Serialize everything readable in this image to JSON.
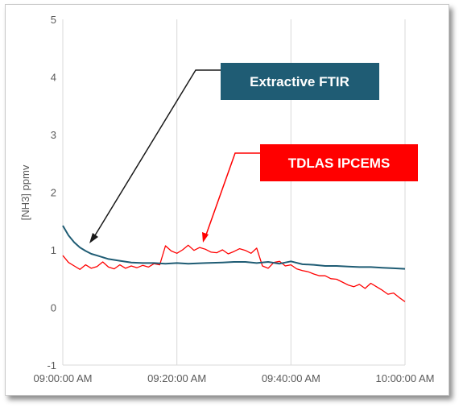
{
  "chart_data": {
    "type": "line",
    "title": "",
    "xlabel": "",
    "ylabel": "[NH3] ppmv",
    "ylim": [
      -1,
      5
    ],
    "yticks": [
      "-1",
      "0",
      "1",
      "2",
      "3",
      "4",
      "5"
    ],
    "xticks": [
      "09:00:00 AM",
      "09:20:00 AM",
      "09:40:00 AM",
      "10:00:00 AM"
    ],
    "x_minutes": [
      0,
      60
    ],
    "grid": "vertical",
    "series": [
      {
        "name": "Extractive FTIR",
        "color": "#1f5c74",
        "x": [
          0,
          1,
          2,
          3,
          4,
          5,
          6,
          8,
          10,
          12,
          14,
          16,
          18,
          20,
          22,
          25,
          28,
          30,
          32,
          34,
          36,
          38,
          40,
          42,
          44,
          46,
          48,
          50,
          52,
          54,
          56,
          58,
          60
        ],
        "values": [
          1.42,
          1.25,
          1.13,
          1.04,
          0.98,
          0.93,
          0.9,
          0.84,
          0.81,
          0.78,
          0.77,
          0.77,
          0.76,
          0.77,
          0.76,
          0.77,
          0.78,
          0.79,
          0.79,
          0.77,
          0.79,
          0.76,
          0.8,
          0.75,
          0.74,
          0.72,
          0.72,
          0.71,
          0.7,
          0.7,
          0.69,
          0.68,
          0.67
        ]
      },
      {
        "name": "TDLAS IPCEMS",
        "color": "#ff0000",
        "x": [
          0,
          1,
          2,
          3,
          4,
          5,
          6,
          7,
          8,
          9,
          10,
          11,
          12,
          13,
          14,
          15,
          16,
          17,
          18,
          19,
          20,
          21,
          22,
          23,
          24,
          25,
          26,
          27,
          28,
          29,
          30,
          31,
          32,
          33,
          34,
          35,
          36,
          37,
          38,
          39,
          40,
          41,
          42,
          43,
          44,
          45,
          46,
          47,
          48,
          49,
          50,
          51,
          52,
          53,
          54,
          55,
          56,
          57,
          58,
          59,
          60
        ],
        "values": [
          0.9,
          0.78,
          0.72,
          0.66,
          0.74,
          0.68,
          0.71,
          0.79,
          0.7,
          0.67,
          0.74,
          0.68,
          0.72,
          0.69,
          0.73,
          0.7,
          0.76,
          0.74,
          1.07,
          0.98,
          0.94,
          1.0,
          1.08,
          0.99,
          1.04,
          1.01,
          0.96,
          0.95,
          1.0,
          0.93,
          0.97,
          1.02,
          0.99,
          0.94,
          1.03,
          0.72,
          0.68,
          0.78,
          0.8,
          0.72,
          0.74,
          0.67,
          0.64,
          0.62,
          0.58,
          0.55,
          0.55,
          0.5,
          0.49,
          0.44,
          0.39,
          0.36,
          0.4,
          0.33,
          0.42,
          0.36,
          0.3,
          0.23,
          0.25,
          0.17,
          0.1
        ]
      }
    ],
    "annotations": [
      {
        "text": "Extractive FTIR",
        "box_color": "#1f5c74",
        "arrow_color": "#1a1a1a",
        "points_to": "Extractive FTIR"
      },
      {
        "text": "TDLAS IPCEMS",
        "box_color": "#ff0000",
        "arrow_color": "#ff0000",
        "points_to": "TDLAS IPCEMS"
      }
    ]
  }
}
